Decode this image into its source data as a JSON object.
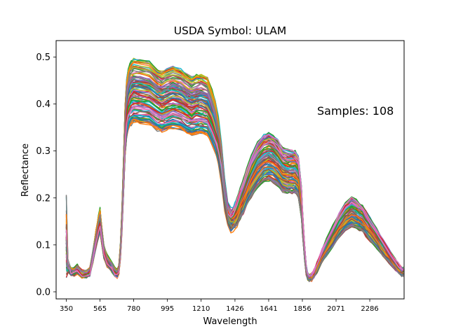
{
  "chart_data": {
    "type": "line",
    "title": "USDA Symbol: ULAM",
    "xlabel": "Wavelength",
    "ylabel": "Reflectance",
    "annotation": "Samples: 108",
    "sample_count": 108,
    "xlim": [
      285,
      2505
    ],
    "ylim": [
      -0.015,
      0.535
    ],
    "x_ticks": [
      350,
      565,
      780,
      995,
      1210,
      1426,
      1641,
      1856,
      2071,
      2286
    ],
    "y_ticks": [
      0.0,
      0.1,
      0.2,
      0.3,
      0.4,
      0.5
    ],
    "y_tick_labels": [
      "0.0",
      "0.1",
      "0.2",
      "0.3",
      "0.4",
      "0.5"
    ],
    "grid": false,
    "legend": "none",
    "palette": [
      "#1f77b4",
      "#ff7f0e",
      "#2ca02c",
      "#d62728",
      "#9467bd",
      "#8c564b",
      "#e377c2",
      "#7f7f7f",
      "#bcbd22",
      "#17becf"
    ],
    "mean_spectrum": {
      "x": [
        350,
        360,
        380,
        400,
        420,
        450,
        480,
        500,
        520,
        540,
        555,
        565,
        575,
        590,
        610,
        640,
        660,
        675,
        685,
        695,
        705,
        715,
        725,
        735,
        745,
        755,
        765,
        780,
        820,
        880,
        930,
        960,
        990,
        1030,
        1080,
        1120,
        1150,
        1180,
        1210,
        1250,
        1280,
        1300,
        1320,
        1340,
        1360,
        1380,
        1400,
        1415,
        1426,
        1440,
        1460,
        1480,
        1500,
        1530,
        1570,
        1610,
        1641,
        1670,
        1700,
        1730,
        1760,
        1790,
        1810,
        1830,
        1850,
        1856,
        1870,
        1880,
        1890,
        1900,
        1915,
        1930,
        1950,
        1980,
        2010,
        2050,
        2090,
        2130,
        2170,
        2200,
        2220,
        2240,
        2260,
        2290,
        2330,
        2370,
        2410,
        2450,
        2470,
        2490,
        2500
      ],
      "y": [
        0.18,
        0.07,
        0.045,
        0.045,
        0.05,
        0.04,
        0.04,
        0.045,
        0.08,
        0.12,
        0.145,
        0.16,
        0.13,
        0.09,
        0.07,
        0.055,
        0.045,
        0.04,
        0.05,
        0.09,
        0.16,
        0.26,
        0.36,
        0.41,
        0.43,
        0.44,
        0.445,
        0.45,
        0.448,
        0.445,
        0.43,
        0.425,
        0.43,
        0.435,
        0.43,
        0.42,
        0.415,
        0.42,
        0.42,
        0.415,
        0.39,
        0.37,
        0.34,
        0.29,
        0.22,
        0.175,
        0.16,
        0.165,
        0.17,
        0.18,
        0.2,
        0.215,
        0.235,
        0.26,
        0.285,
        0.3,
        0.305,
        0.3,
        0.29,
        0.275,
        0.27,
        0.27,
        0.27,
        0.26,
        0.2,
        0.16,
        0.09,
        0.05,
        0.035,
        0.032,
        0.034,
        0.04,
        0.055,
        0.08,
        0.1,
        0.125,
        0.15,
        0.17,
        0.18,
        0.175,
        0.17,
        0.165,
        0.155,
        0.14,
        0.12,
        0.1,
        0.08,
        0.06,
        0.052,
        0.045,
        0.045
      ]
    }
  }
}
